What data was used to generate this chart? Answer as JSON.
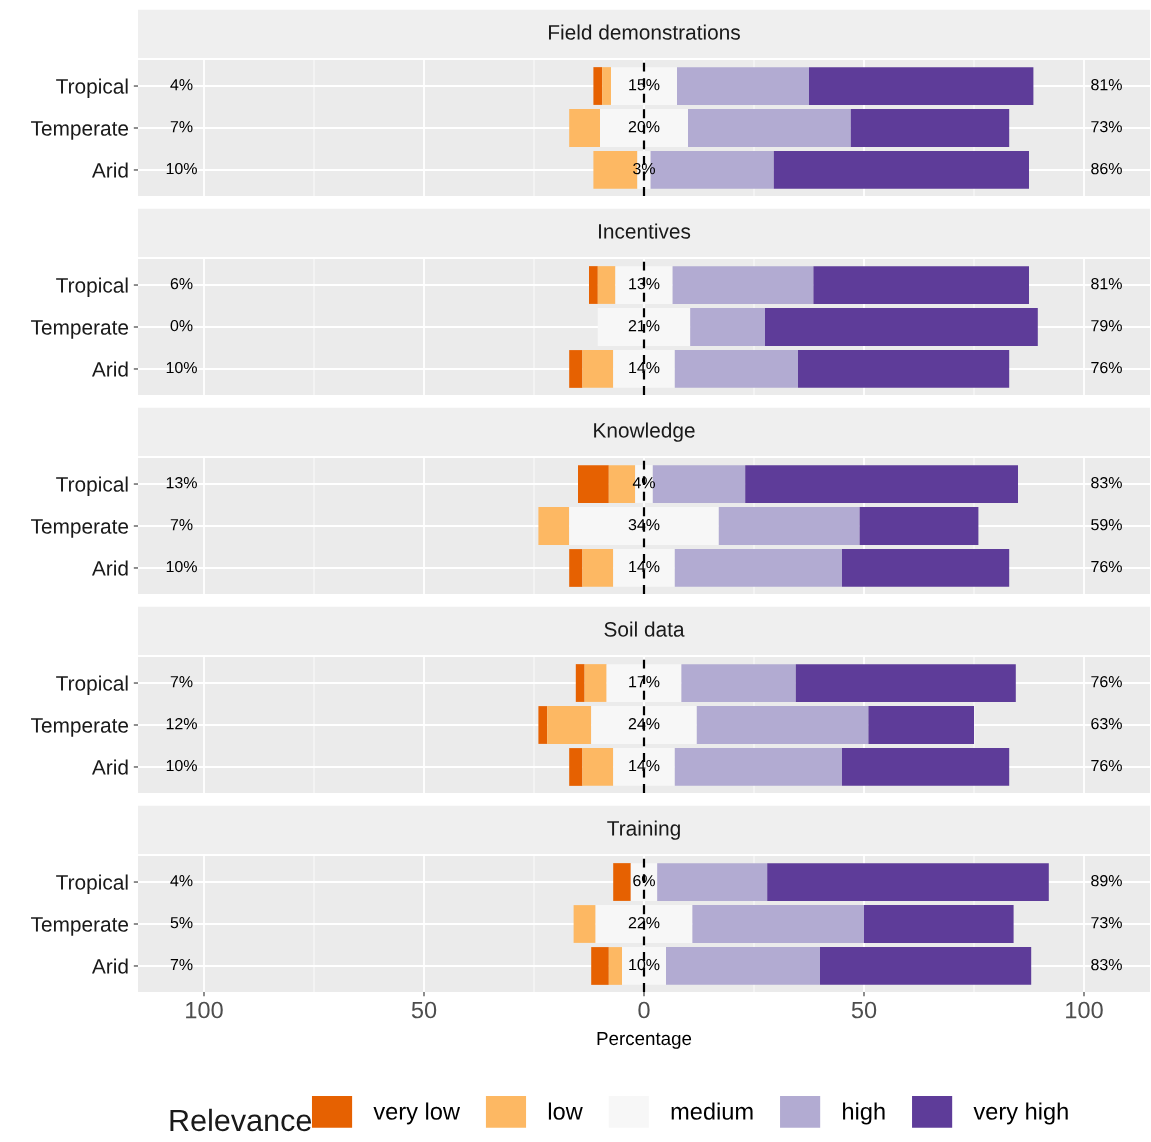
{
  "chart_data": [
    {
      "type": "bar",
      "orientation": "horizontal",
      "title": "Field demonstrations",
      "categories": [
        "Tropical",
        "Temperate",
        "Arid"
      ],
      "series": [
        {
          "color": "#e66101",
          "values": [
            2,
            0,
            0
          ],
          "base": [
            -11.5,
            null,
            null
          ]
        },
        {
          "color": "#fdb863",
          "values": [
            2,
            7,
            10
          ],
          "base": [
            -9.5,
            -17,
            -11.5
          ]
        },
        {
          "color": "#f7f7f7",
          "values": [
            15,
            20,
            3
          ],
          "base": [
            -7.5,
            -10,
            -1.5
          ],
          "value_labels": [
            "15%",
            "20%",
            "3%"
          ]
        },
        {
          "color": "#b2abd2",
          "values": [
            30,
            37,
            28
          ],
          "base": [
            7.5,
            10,
            1.5
          ]
        },
        {
          "color": "#5e3c99",
          "values": [
            51,
            36,
            58
          ],
          "base": [
            37.5,
            47,
            29.5
          ]
        }
      ],
      "annotations": [
        "4%",
        "7%",
        "10%",
        "81%",
        "73%",
        "86%"
      ],
      "ref_lines": [
        {
          "axis": "x",
          "value": 0,
          "color": "#000000",
          "line_style": "dashed"
        }
      ],
      "xlim": [
        -115,
        115
      ],
      "grid": true,
      "tick_labels": "y"
    },
    {
      "type": "bar",
      "orientation": "horizontal",
      "title": "Incentives",
      "categories": [
        "Tropical",
        "Temperate",
        "Arid"
      ],
      "series": [
        {
          "color": "#e66101",
          "values": [
            2,
            0,
            3
          ],
          "base": [
            -12.5,
            null,
            -17
          ]
        },
        {
          "color": "#fdb863",
          "values": [
            4,
            0,
            7
          ],
          "base": [
            -10.5,
            null,
            -14
          ]
        },
        {
          "color": "#f7f7f7",
          "values": [
            13,
            21,
            14
          ],
          "base": [
            -6.5,
            -10.5,
            -7
          ],
          "value_labels": [
            "13%",
            "21%",
            "14%"
          ]
        },
        {
          "color": "#b2abd2",
          "values": [
            32,
            17,
            28
          ],
          "base": [
            6.5,
            10.5,
            7
          ]
        },
        {
          "color": "#5e3c99",
          "values": [
            49,
            62,
            48
          ],
          "base": [
            38.5,
            27.5,
            35
          ]
        }
      ],
      "annotations": [
        "6%",
        "0%",
        "10%",
        "81%",
        "79%",
        "76%"
      ],
      "ref_lines": [
        {
          "axis": "x",
          "value": 0,
          "color": "#000000",
          "line_style": "dashed"
        }
      ],
      "xlim": [
        -115,
        115
      ],
      "grid": true,
      "tick_labels": "y"
    },
    {
      "type": "bar",
      "orientation": "horizontal",
      "title": "Knowledge",
      "categories": [
        "Tropical",
        "Temperate",
        "Arid"
      ],
      "series": [
        {
          "color": "#e66101",
          "values": [
            7,
            0,
            3
          ],
          "base": [
            -15,
            null,
            -17
          ]
        },
        {
          "color": "#fdb863",
          "values": [
            6,
            7,
            7
          ],
          "base": [
            -8,
            -24,
            -14
          ]
        },
        {
          "color": "#f7f7f7",
          "values": [
            4,
            34,
            14
          ],
          "base": [
            -2,
            -17,
            -7
          ],
          "value_labels": [
            "4%",
            "34%",
            "14%"
          ]
        },
        {
          "color": "#b2abd2",
          "values": [
            21,
            32,
            38
          ],
          "base": [
            2,
            17,
            7
          ]
        },
        {
          "color": "#5e3c99",
          "values": [
            62,
            27,
            38
          ],
          "base": [
            23,
            49,
            45
          ]
        }
      ],
      "annotations": [
        "13%",
        "7%",
        "10%",
        "83%",
        "59%",
        "76%"
      ],
      "ref_lines": [
        {
          "axis": "x",
          "value": 0,
          "color": "#000000",
          "line_style": "dashed"
        }
      ],
      "xlim": [
        -115,
        115
      ],
      "grid": true,
      "tick_labels": "y"
    },
    {
      "type": "bar",
      "orientation": "horizontal",
      "title": "Soil data",
      "categories": [
        "Tropical",
        "Temperate",
        "Arid"
      ],
      "series": [
        {
          "color": "#e66101",
          "values": [
            2,
            2,
            3
          ],
          "base": [
            -15.5,
            -24,
            -17
          ]
        },
        {
          "color": "#fdb863",
          "values": [
            5,
            10,
            7
          ],
          "base": [
            -13.5,
            -22,
            -14
          ]
        },
        {
          "color": "#f7f7f7",
          "values": [
            17,
            24,
            14
          ],
          "base": [
            -8.5,
            -12,
            -7
          ],
          "value_labels": [
            "17%",
            "24%",
            "14%"
          ]
        },
        {
          "color": "#b2abd2",
          "values": [
            26,
            39,
            38
          ],
          "base": [
            8.5,
            12,
            7
          ]
        },
        {
          "color": "#5e3c99",
          "values": [
            50,
            24,
            38
          ],
          "base": [
            34.5,
            51,
            45
          ]
        }
      ],
      "annotations": [
        "7%",
        "12%",
        "10%",
        "76%",
        "63%",
        "76%"
      ],
      "ref_lines": [
        {
          "axis": "x",
          "value": 0,
          "color": "#000000",
          "line_style": "dashed"
        }
      ],
      "xlim": [
        -115,
        115
      ],
      "grid": true,
      "tick_labels": "y"
    },
    {
      "type": "bar",
      "orientation": "horizontal",
      "title": "Training",
      "categories": [
        "Tropical",
        "Temperate",
        "Arid"
      ],
      "series": [
        {
          "name": "very low",
          "color": "#e66101",
          "values": [
            4,
            0,
            4
          ],
          "base": [
            -7,
            null,
            -12
          ]
        },
        {
          "name": "low",
          "color": "#fdb863",
          "values": [
            0,
            5,
            3
          ],
          "base": [
            null,
            -16,
            -8
          ]
        },
        {
          "name": "medium",
          "color": "#f7f7f7",
          "values": [
            6,
            22,
            10
          ],
          "base": [
            -3,
            -11,
            -5
          ],
          "value_labels": [
            "6%",
            "22%",
            "10%"
          ]
        },
        {
          "name": "high",
          "color": "#b2abd2",
          "values": [
            25,
            39,
            35
          ],
          "base": [
            3,
            11,
            5
          ]
        },
        {
          "name": "very high",
          "color": "#5e3c99",
          "values": [
            64,
            34,
            48
          ],
          "base": [
            28,
            50,
            40
          ]
        }
      ],
      "annotations": [
        "4%",
        "5%",
        "7%",
        "89%",
        "73%",
        "83%"
      ],
      "ref_lines": [
        {
          "axis": "x",
          "value": 0,
          "color": "#000000",
          "line_style": "dashed"
        }
      ],
      "xlim": [
        -115,
        115
      ],
      "xticks": [
        {
          "value": -100,
          "label": "100"
        },
        {
          "value": -50,
          "label": "50"
        },
        0,
        50,
        100
      ],
      "grid": true,
      "xlabel": "Percentage",
      "legend": "bottom",
      "legend_title": "Relevance"
    }
  ]
}
